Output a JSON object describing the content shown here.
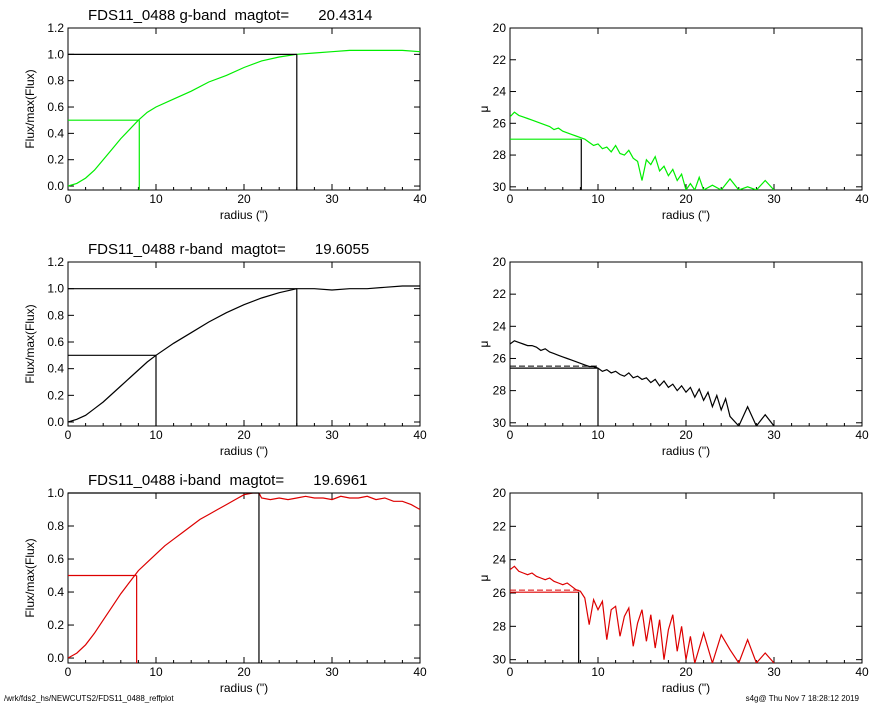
{
  "footer": {
    "path": "/wrk/fds2_hs/NEWCUTS2/FDS11_0488_reffplot",
    "stamp": "s4g@  Thu Nov  7 18:28:12 2019"
  },
  "colors": {
    "g": "#00ee00",
    "r": "#000000",
    "i": "#dd0000",
    "axis": "#000000"
  },
  "chart_data": [
    {
      "id": "g-growth",
      "type": "line",
      "title": "FDS11_0488 g-band  magtot=       20.4314",
      "xlabel": "radius (\")",
      "ylabel": "Flux/max(Flux)",
      "xlim": [
        0,
        40
      ],
      "ylim": [
        -0.03,
        1.2
      ],
      "xticks": [
        "0",
        "10",
        "20",
        "30",
        "40"
      ],
      "yticks": [
        "0.0",
        "0.2",
        "0.4",
        "0.6",
        "0.8",
        "1.0",
        "1.2"
      ],
      "series": [
        {
          "color": "#00ee00",
          "x": [
            0,
            1,
            2,
            3,
            4,
            5,
            6,
            7,
            8,
            9,
            10,
            12,
            14,
            16,
            18,
            20,
            22,
            24,
            26,
            28,
            30,
            32,
            34,
            36,
            38,
            40
          ],
          "y": [
            0.0,
            0.02,
            0.06,
            0.12,
            0.2,
            0.28,
            0.36,
            0.43,
            0.5,
            0.56,
            0.6,
            0.66,
            0.72,
            0.79,
            0.84,
            0.9,
            0.95,
            0.98,
            1.0,
            1.01,
            1.02,
            1.03,
            1.03,
            1.03,
            1.03,
            1.02
          ]
        }
      ],
      "markers": {
        "color": "#00ee00",
        "r_half": 8.1,
        "f_half": 0.5
      },
      "total": {
        "r_tot": 26.0,
        "f_tot": 1.0
      }
    },
    {
      "id": "g-surface",
      "type": "line",
      "xlabel": "radius (\")",
      "ylabel": "μ",
      "xlim": [
        0,
        40
      ],
      "ylim": [
        30.2,
        20
      ],
      "reversed_y": true,
      "xticks": [
        "0",
        "10",
        "20",
        "30",
        "40"
      ],
      "yticks": [
        "20",
        "22",
        "24",
        "26",
        "28",
        "30"
      ],
      "series": [
        {
          "color": "#00ee00",
          "x": [
            0,
            0.5,
            1,
            1.5,
            2,
            2.5,
            3,
            3.5,
            4,
            4.5,
            5,
            5.5,
            6,
            6.5,
            7,
            7.5,
            8,
            8.5,
            9,
            9.5,
            10,
            10.5,
            11,
            11.5,
            12,
            12.5,
            13,
            13.5,
            14,
            14.5,
            15,
            15.5,
            16,
            16.5,
            17,
            17.5,
            18,
            18.5,
            19,
            19.5,
            20,
            20.5,
            21,
            21.5,
            22,
            23,
            24,
            25,
            26,
            27,
            28,
            29,
            30
          ],
          "y": [
            25.6,
            25.3,
            25.5,
            25.6,
            25.7,
            25.8,
            25.9,
            26.0,
            26.1,
            26.2,
            26.4,
            26.3,
            26.5,
            26.6,
            26.7,
            26.8,
            26.9,
            27.0,
            27.2,
            27.4,
            27.3,
            27.6,
            27.5,
            27.8,
            27.4,
            27.9,
            28.0,
            27.7,
            28.2,
            28.4,
            29.6,
            28.3,
            28.6,
            28.1,
            29.0,
            28.7,
            29.3,
            28.9,
            29.6,
            29.2,
            30.2,
            29.8,
            30.2,
            29.4,
            30.2,
            29.9,
            30.2,
            29.5,
            30.2,
            30.0,
            30.2,
            29.6,
            30.2
          ]
        }
      ],
      "markers": {
        "color": "#00ee00",
        "r_half": 8.1,
        "mu_half": 27.0
      }
    },
    {
      "id": "r-growth",
      "type": "line",
      "title": "FDS11_0488 r-band  magtot=       19.6055",
      "xlabel": "radius (\")",
      "ylabel": "Flux/max(Flux)",
      "xlim": [
        0,
        40
      ],
      "ylim": [
        -0.03,
        1.2
      ],
      "xticks": [
        "0",
        "10",
        "20",
        "30",
        "40"
      ],
      "yticks": [
        "0.0",
        "0.2",
        "0.4",
        "0.6",
        "0.8",
        "1.0",
        "1.2"
      ],
      "series": [
        {
          "color": "#000000",
          "x": [
            0,
            1,
            2,
            3,
            4,
            5,
            6,
            7,
            8,
            9,
            10,
            12,
            14,
            16,
            18,
            20,
            22,
            24,
            26,
            28,
            30,
            32,
            34,
            36,
            38,
            40
          ],
          "y": [
            0.0,
            0.02,
            0.05,
            0.1,
            0.15,
            0.21,
            0.27,
            0.33,
            0.39,
            0.45,
            0.5,
            0.59,
            0.67,
            0.75,
            0.82,
            0.88,
            0.93,
            0.97,
            1.0,
            1.0,
            0.99,
            1.0,
            1.0,
            1.01,
            1.02,
            1.02
          ]
        }
      ],
      "markers": {
        "color": "#000000",
        "r_half": 10.0,
        "f_half": 0.5
      },
      "total": {
        "r_tot": 26.0,
        "f_tot": 1.0
      }
    },
    {
      "id": "r-surface",
      "type": "line",
      "xlabel": "radius (\")",
      "ylabel": "μ",
      "xlim": [
        0,
        40
      ],
      "ylim": [
        30.2,
        20
      ],
      "reversed_y": true,
      "xticks": [
        "0",
        "10",
        "20",
        "30",
        "40"
      ],
      "yticks": [
        "20",
        "22",
        "24",
        "26",
        "28",
        "30"
      ],
      "series": [
        {
          "color": "#000000",
          "x": [
            0,
            0.5,
            1,
            1.5,
            2,
            2.5,
            3,
            3.5,
            4,
            4.5,
            5,
            5.5,
            6,
            6.5,
            7,
            7.5,
            8,
            8.5,
            9,
            9.5,
            10,
            10.5,
            11,
            11.5,
            12,
            12.5,
            13,
            13.5,
            14,
            14.5,
            15,
            15.5,
            16,
            16.5,
            17,
            17.5,
            18,
            18.5,
            19,
            19.5,
            20,
            20.5,
            21,
            21.5,
            22,
            22.5,
            23,
            23.5,
            24,
            24.5,
            25,
            26,
            27,
            28,
            29,
            30
          ],
          "y": [
            25.1,
            24.9,
            25.0,
            25.1,
            25.2,
            25.2,
            25.3,
            25.5,
            25.4,
            25.6,
            25.7,
            25.8,
            25.9,
            26.0,
            26.1,
            26.2,
            26.3,
            26.4,
            26.5,
            26.5,
            26.6,
            26.8,
            26.7,
            26.9,
            26.8,
            27.0,
            27.1,
            26.9,
            27.2,
            27.1,
            27.3,
            27.2,
            27.5,
            27.3,
            27.7,
            27.4,
            27.8,
            27.6,
            28.0,
            27.7,
            28.1,
            27.8,
            28.4,
            27.9,
            28.6,
            28.1,
            29.0,
            28.3,
            29.2,
            28.5,
            29.6,
            30.2,
            29.0,
            30.2,
            29.5,
            30.2
          ]
        }
      ],
      "markers": {
        "color": "#000000",
        "r_half": 10.0,
        "mu_half": 26.6
      }
    },
    {
      "id": "i-growth",
      "type": "line",
      "title": "FDS11_0488 i-band  magtot=       19.6961",
      "xlabel": "radius (\")",
      "ylabel": "Flux/max(Flux)",
      "xlim": [
        0,
        40
      ],
      "ylim": [
        -0.03,
        1.0
      ],
      "xticks": [
        "0",
        "10",
        "20",
        "30",
        "40"
      ],
      "yticks": [
        "0.0",
        "0.2",
        "0.4",
        "0.6",
        "0.8",
        "1.0"
      ],
      "series": [
        {
          "color": "#dd0000",
          "x": [
            0,
            1,
            2,
            3,
            4,
            5,
            6,
            7,
            8,
            9,
            10,
            11,
            12,
            13,
            14,
            15,
            16,
            17,
            18,
            19,
            20,
            21,
            21.7,
            22,
            23,
            24,
            25,
            26,
            27,
            28,
            29,
            30,
            31,
            32,
            33,
            34,
            35,
            36,
            37,
            38,
            39,
            40
          ],
          "y": [
            0.0,
            0.03,
            0.08,
            0.15,
            0.23,
            0.31,
            0.39,
            0.46,
            0.53,
            0.58,
            0.63,
            0.68,
            0.72,
            0.76,
            0.8,
            0.84,
            0.87,
            0.9,
            0.93,
            0.96,
            0.99,
            1.0,
            1.0,
            0.97,
            0.96,
            0.97,
            0.96,
            0.97,
            0.98,
            0.97,
            0.97,
            0.96,
            0.98,
            0.97,
            0.97,
            0.98,
            0.96,
            0.97,
            0.95,
            0.95,
            0.93,
            0.9
          ]
        }
      ],
      "markers": {
        "color": "#dd0000",
        "r_half": 7.8,
        "f_half": 0.5
      },
      "total": {
        "r_tot": 21.7,
        "f_tot": 1.0
      }
    },
    {
      "id": "i-surface",
      "type": "line",
      "xlabel": "radius (\")",
      "ylabel": "μ",
      "xlim": [
        0,
        40
      ],
      "ylim": [
        30.2,
        20
      ],
      "reversed_y": true,
      "xticks": [
        "0",
        "10",
        "20",
        "30",
        "40"
      ],
      "yticks": [
        "20",
        "22",
        "24",
        "26",
        "28",
        "30"
      ],
      "series": [
        {
          "color": "#dd0000",
          "x": [
            0,
            0.5,
            1,
            1.5,
            2,
            2.5,
            3,
            3.5,
            4,
            4.5,
            5,
            5.5,
            6,
            6.5,
            7,
            7.5,
            8,
            8.5,
            9,
            9.5,
            10,
            10.5,
            11,
            11.5,
            12,
            12.5,
            13,
            13.5,
            14,
            14.5,
            15,
            15.5,
            16,
            16.5,
            17,
            17.5,
            18,
            18.5,
            19,
            19.5,
            20,
            20.5,
            21,
            22,
            23,
            24,
            25,
            26,
            27,
            28,
            29,
            30
          ],
          "y": [
            24.6,
            24.4,
            24.7,
            24.8,
            24.9,
            24.8,
            25.0,
            25.1,
            25.2,
            25.1,
            25.3,
            25.4,
            25.5,
            25.4,
            25.6,
            25.8,
            25.9,
            26.3,
            27.9,
            26.4,
            27.0,
            26.5,
            28.8,
            27.0,
            26.8,
            28.6,
            27.4,
            26.9,
            29.2,
            27.8,
            27.0,
            28.9,
            27.3,
            29.3,
            27.6,
            30.0,
            28.2,
            27.3,
            29.5,
            28.0,
            30.0,
            28.6,
            30.2,
            28.4,
            30.2,
            28.5,
            29.4,
            30.2,
            28.8,
            30.2,
            29.6,
            30.2
          ]
        }
      ],
      "markers": {
        "color": "#dd0000",
        "r_half": 7.8,
        "mu_half": 25.95
      }
    }
  ]
}
